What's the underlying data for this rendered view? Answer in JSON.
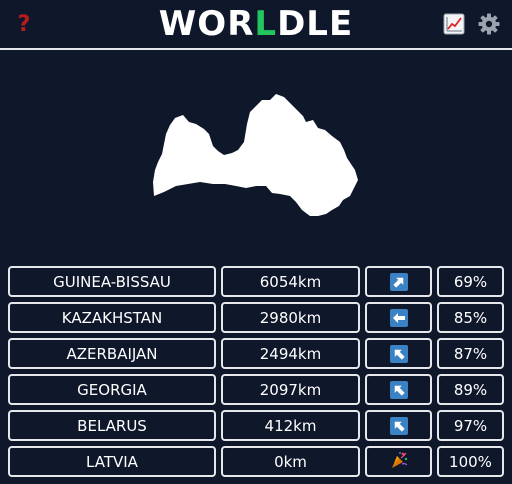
{
  "header": {
    "help_icon": "?",
    "title_part1": "WOR",
    "title_highlight": "L",
    "title_part2": "DLE",
    "stats_icon": "chart-icon",
    "settings_icon": "gear-icon"
  },
  "colors": {
    "background": "#0f172a",
    "accent_green": "#22c55e",
    "help_red": "#b91c1c",
    "arrow_blue": "#3b82c4",
    "border": "#e5e7eb"
  },
  "map": {
    "shape": "latvia-silhouette-icon"
  },
  "guesses": [
    {
      "country": "GUINEA-BISSAU",
      "distance": "6054km",
      "direction": "northeast",
      "direction_icon": "arrow-up-right-icon",
      "proximity": "69%"
    },
    {
      "country": "KAZAKHSTAN",
      "distance": "2980km",
      "direction": "west",
      "direction_icon": "arrow-left-icon",
      "proximity": "85%"
    },
    {
      "country": "AZERBAIJAN",
      "distance": "2494km",
      "direction": "northwest",
      "direction_icon": "arrow-up-left-icon",
      "proximity": "87%"
    },
    {
      "country": "GEORGIA",
      "distance": "2097km",
      "direction": "northwest",
      "direction_icon": "arrow-up-left-icon",
      "proximity": "89%"
    },
    {
      "country": "BELARUS",
      "distance": "412km",
      "direction": "northwest",
      "direction_icon": "arrow-up-left-icon",
      "proximity": "97%"
    },
    {
      "country": "LATVIA",
      "distance": "0km",
      "direction": "correct",
      "direction_icon": "party-popper-icon",
      "proximity": "100%"
    }
  ]
}
